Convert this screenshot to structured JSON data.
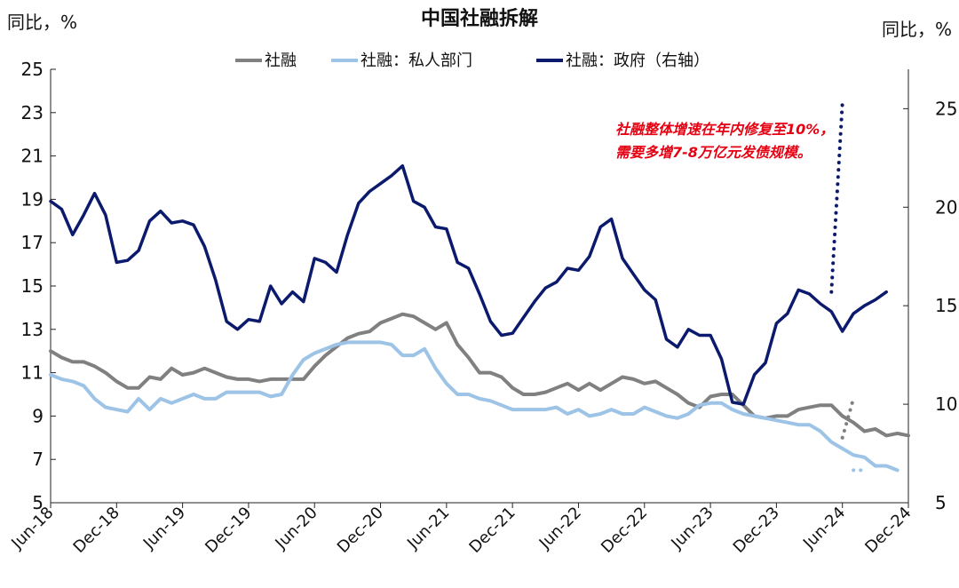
{
  "chart_data": {
    "type": "line",
    "title": "中国社融拆解",
    "left_unit": "同比，%",
    "right_unit": "同比，%",
    "legend": [
      "社融",
      "社融：私人部门",
      "社融：政府（右轴）"
    ],
    "legend_placement": "top",
    "annotation": [
      "社融整体增速在年内修复至10%，",
      "需要多增7-8万亿元发债规模。"
    ],
    "x_tick_labels": [
      "Jun-18",
      "Dec-18",
      "Jun-19",
      "Dec-19",
      "Jun-20",
      "Dec-20",
      "Jun-21",
      "Dec-21",
      "Jun-22",
      "Dec-22",
      "Jun-23",
      "Dec-23",
      "Jun-24",
      "Dec-24"
    ],
    "x_range": [
      "2018-06",
      "2024-12"
    ],
    "y_left": {
      "min": 5,
      "max": 25,
      "ticks": [
        5,
        7,
        9,
        11,
        13,
        15,
        17,
        19,
        21,
        23,
        25
      ]
    },
    "y_right": {
      "min": 5,
      "max": 27,
      "ticks": [
        5,
        10,
        15,
        20,
        25
      ]
    },
    "grid": false,
    "colors": {
      "total": "#808080",
      "private": "#9dc3e6",
      "government": "#0c1a6e",
      "annotation": "#e60012"
    },
    "series": [
      {
        "name": "社融",
        "axis": "left",
        "color": "#808080",
        "start": "2018-06",
        "values": [
          12.0,
          11.7,
          11.5,
          11.5,
          11.3,
          11.0,
          10.6,
          10.3,
          10.3,
          10.8,
          10.7,
          11.2,
          10.9,
          11.0,
          11.2,
          11.0,
          10.8,
          10.7,
          10.7,
          10.6,
          10.7,
          10.7,
          10.7,
          10.7,
          11.3,
          11.8,
          12.2,
          12.6,
          12.8,
          12.9,
          13.3,
          13.5,
          13.7,
          13.6,
          13.3,
          13.0,
          13.3,
          12.3,
          11.7,
          11.0,
          11.0,
          10.8,
          10.3,
          10.0,
          10.0,
          10.1,
          10.3,
          10.5,
          10.2,
          10.5,
          10.2,
          10.5,
          10.8,
          10.7,
          10.5,
          10.6,
          10.3,
          10.0,
          9.6,
          9.4,
          9.9,
          10.0,
          10.0,
          9.5,
          9.0,
          8.9,
          9.0,
          9.0,
          9.3,
          9.4,
          9.5,
          9.5,
          9.0,
          8.7,
          8.3,
          8.4,
          8.1,
          8.2,
          8.1
        ]
      },
      {
        "name": "社融：私人部门",
        "axis": "left",
        "color": "#9dc3e6",
        "start": "2018-06",
        "values": [
          10.9,
          10.7,
          10.6,
          10.4,
          9.8,
          9.4,
          9.3,
          9.2,
          9.8,
          9.3,
          9.8,
          9.6,
          9.8,
          10.0,
          9.8,
          9.8,
          10.1,
          10.1,
          10.1,
          10.1,
          9.9,
          10.0,
          10.9,
          11.6,
          11.9,
          12.1,
          12.3,
          12.4,
          12.4,
          12.4,
          12.4,
          12.3,
          11.8,
          11.8,
          12.1,
          11.2,
          10.5,
          10.0,
          10.0,
          9.8,
          9.7,
          9.5,
          9.3,
          9.3,
          9.3,
          9.3,
          9.4,
          9.1,
          9.3,
          9.0,
          9.1,
          9.3,
          9.1,
          9.1,
          9.4,
          9.2,
          9.0,
          8.9,
          9.1,
          9.5,
          9.6,
          9.6,
          9.3,
          9.1,
          9.0,
          8.9,
          8.8,
          8.7,
          8.6,
          8.6,
          8.3,
          7.8,
          7.5,
          7.2,
          7.1,
          6.7,
          6.7,
          6.5
        ]
      },
      {
        "name": "社融：政府（右轴）",
        "axis": "right",
        "color": "#0c1a6e",
        "start": "2018-06",
        "values": [
          20.3,
          19.9,
          18.6,
          19.6,
          20.7,
          19.6,
          17.2,
          17.3,
          17.8,
          19.3,
          19.8,
          19.2,
          19.3,
          19.1,
          18.0,
          16.3,
          14.2,
          13.8,
          14.3,
          14.2,
          16.0,
          15.1,
          15.7,
          15.2,
          17.4,
          17.2,
          16.7,
          18.6,
          20.2,
          20.8,
          21.2,
          21.6,
          22.1,
          20.3,
          20.0,
          19.0,
          18.9,
          17.2,
          16.9,
          15.6,
          14.2,
          13.5,
          13.6,
          14.4,
          15.2,
          15.9,
          16.2,
          16.9,
          16.8,
          17.5,
          19.0,
          19.4,
          17.4,
          16.6,
          15.8,
          15.3,
          13.3,
          12.9,
          13.8,
          13.5,
          13.5,
          12.3,
          10.1,
          10.0,
          11.5,
          12.1,
          14.1,
          14.6,
          15.8,
          15.6,
          15.1,
          14.7,
          13.7,
          14.6,
          15.0,
          15.3,
          15.7
        ]
      },
      {
        "name": "社融",
        "axis": "left",
        "projection": true,
        "color": "#808080",
        "start": "2024-06",
        "values": [
          8.0,
          9.8
        ]
      },
      {
        "name": "社融：私人部门",
        "axis": "left",
        "projection": true,
        "color": "#9dc3e6",
        "start": "2024-07",
        "values": [
          6.5,
          6.5
        ]
      },
      {
        "name": "社融：政府（右轴）",
        "axis": "right",
        "projection": true,
        "color": "#0c1a6e",
        "start": "2024-05",
        "values": [
          15.7,
          25.3
        ]
      }
    ]
  }
}
